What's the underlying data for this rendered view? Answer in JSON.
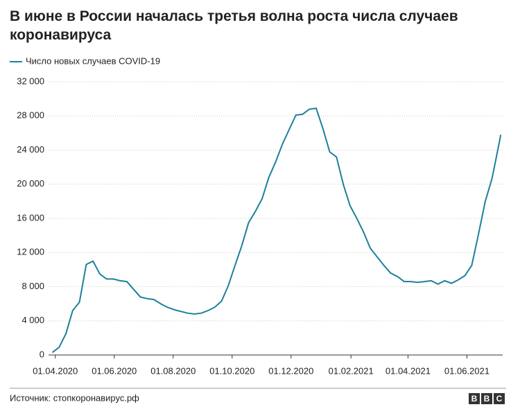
{
  "chart_data": {
    "type": "line",
    "title": "В июне в России началась третья волна роста числа случаев коронавируса",
    "source": "Источник: стопкоронавирус.рф",
    "logo": [
      "B",
      "B",
      "C"
    ],
    "legend": "top-left",
    "grid": true,
    "x": [
      "2020-03-29",
      "2020-04-05",
      "2020-04-12",
      "2020-04-19",
      "2020-04-26",
      "2020-05-03",
      "2020-05-10",
      "2020-05-17",
      "2020-05-24",
      "2020-05-31",
      "2020-06-07",
      "2020-06-14",
      "2020-06-21",
      "2020-06-28",
      "2020-07-05",
      "2020-07-12",
      "2020-07-19",
      "2020-07-26",
      "2020-08-02",
      "2020-08-09",
      "2020-08-16",
      "2020-08-23",
      "2020-08-30",
      "2020-09-06",
      "2020-09-13",
      "2020-09-20",
      "2020-09-27",
      "2020-10-04",
      "2020-10-11",
      "2020-10-18",
      "2020-10-25",
      "2020-11-01",
      "2020-11-08",
      "2020-11-15",
      "2020-11-22",
      "2020-11-29",
      "2020-12-06",
      "2020-12-13",
      "2020-12-20",
      "2020-12-27",
      "2021-01-03",
      "2021-01-10",
      "2021-01-17",
      "2021-01-24",
      "2021-01-31",
      "2021-02-07",
      "2021-02-14",
      "2021-02-21",
      "2021-02-28",
      "2021-03-07",
      "2021-03-14",
      "2021-03-21",
      "2021-03-28",
      "2021-04-04",
      "2021-04-11",
      "2021-04-18",
      "2021-04-25",
      "2021-05-02",
      "2021-05-09",
      "2021-05-16",
      "2021-05-23",
      "2021-05-30",
      "2021-06-06",
      "2021-06-13",
      "2021-06-20",
      "2021-06-27",
      "2021-07-04",
      "2021-07-06"
    ],
    "series": [
      {
        "name": "Число новых случаев COVID-19",
        "color": "#1d7f9b",
        "values": [
          300,
          900,
          2500,
          5200,
          6200,
          10600,
          11000,
          9500,
          8900,
          8900,
          8700,
          8600,
          7700,
          6800,
          6600,
          6500,
          6000,
          5600,
          5300,
          5100,
          4900,
          4800,
          4900,
          5200,
          5600,
          6300,
          8100,
          10500,
          12800,
          15500,
          16800,
          18300,
          20800,
          22600,
          24700,
          26400,
          28100,
          28200,
          28800,
          28900,
          26500,
          23800,
          23200,
          20000,
          17500,
          16000,
          14400,
          12500,
          11500,
          10500,
          9600,
          9200,
          8600,
          8600,
          8500,
          8600,
          8700,
          8300,
          8700,
          8400,
          8800,
          9300,
          10500,
          14200,
          18000,
          20700,
          24600,
          25800
        ]
      }
    ],
    "xlim": [
      "2020-03-25",
      "2021-07-08"
    ],
    "xticks": [
      {
        "value": "2020-04-01",
        "label": "01.04.2020"
      },
      {
        "value": "2020-06-01",
        "label": "01.06.2020"
      },
      {
        "value": "2020-08-01",
        "label": "01.08.2020"
      },
      {
        "value": "2020-10-01",
        "label": "01.10.2020"
      },
      {
        "value": "2020-12-01",
        "label": "01.12.2020"
      },
      {
        "value": "2021-02-01",
        "label": "01.02.2021"
      },
      {
        "value": "2021-04-01",
        "label": "01.04.2021"
      },
      {
        "value": "2021-06-01",
        "label": "01.06.2021"
      }
    ],
    "ylim": [
      0,
      32000
    ],
    "yticks": [
      0,
      {
        "value": 4000,
        "label": "4 000"
      },
      {
        "value": 8000,
        "label": "8 000"
      },
      {
        "value": 12000,
        "label": "12 000"
      },
      {
        "value": 16000,
        "label": "16 000"
      },
      {
        "value": 20000,
        "label": "20 000"
      },
      {
        "value": 24000,
        "label": "24 000"
      },
      {
        "value": 28000,
        "label": "28 000"
      },
      {
        "value": 32000,
        "label": "32 000"
      }
    ]
  }
}
